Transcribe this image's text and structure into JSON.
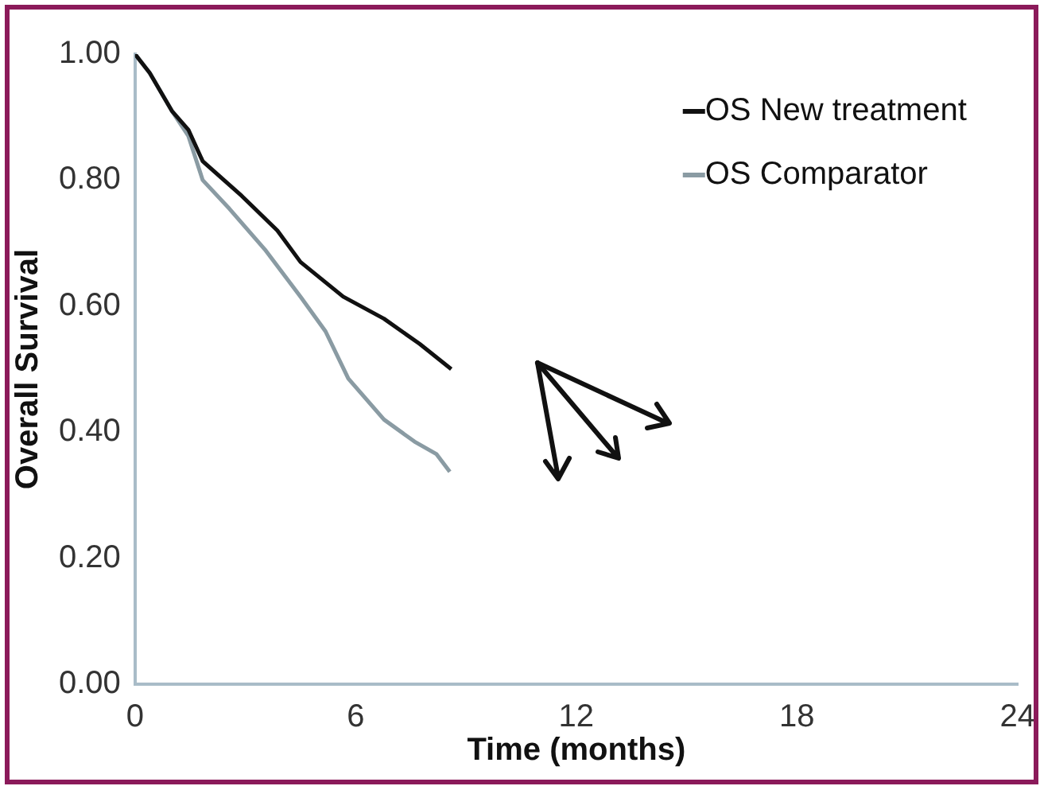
{
  "chart_data": {
    "type": "line",
    "xlabel": "Time (months)",
    "ylabel": "Overall Survival",
    "xlim": [
      0,
      24
    ],
    "xticks": [
      0,
      6,
      12,
      18,
      24
    ],
    "ylim": [
      0,
      1
    ],
    "yticks": [
      {
        "value": 0,
        "label": "0.00"
      },
      {
        "value": 0.2,
        "label": "0.20"
      },
      {
        "value": 0.4,
        "label": "0.40"
      },
      {
        "value": 0.6,
        "label": "0.60"
      },
      {
        "value": 0.8,
        "label": "0.80"
      },
      {
        "value": 1,
        "label": "1.00"
      }
    ],
    "grid": false,
    "legend": "top right",
    "marker": "none",
    "line_style": "solid",
    "series": [
      {
        "name": "OS New treatment",
        "color": "#111111",
        "x": [
          0,
          0.4,
          1.0,
          1.45,
          1.84,
          2.9,
          3.87,
          4.5,
          5.66,
          6.77,
          7.74,
          8.6
        ],
        "values": [
          1.0,
          0.97,
          0.91,
          0.88,
          0.83,
          0.775,
          0.72,
          0.67,
          0.615,
          0.58,
          0.54,
          0.5
        ]
      },
      {
        "name": "OS Comparator",
        "color": "#8a9ba3",
        "x": [
          0,
          0.4,
          1.0,
          1.45,
          1.84,
          2.56,
          3.53,
          4.5,
          5.18,
          5.8,
          6.77,
          7.6,
          8.2,
          8.56
        ],
        "values": [
          1.0,
          0.97,
          0.91,
          0.87,
          0.8,
          0.755,
          0.69,
          0.615,
          0.56,
          0.485,
          0.42,
          0.385,
          0.365,
          0.337
        ]
      }
    ]
  }
}
